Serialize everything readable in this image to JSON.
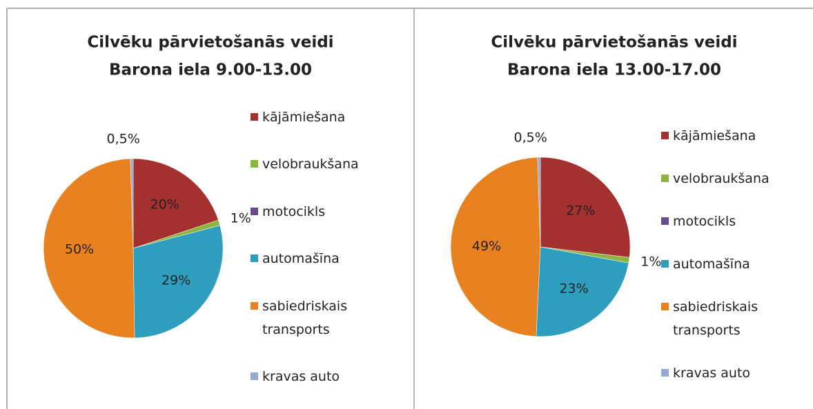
{
  "chart_data": [
    {
      "type": "pie",
      "title": "Cilvēku  pārvietošanās veidi",
      "subtitle": "Barona iela 9.00-13.00",
      "categories": [
        "kājāmiešana",
        "velobraukšana",
        "motocikls",
        "automašīna",
        "sabiedriskais transports",
        "kravas auto"
      ],
      "values": [
        20,
        1,
        0,
        29,
        50,
        0.5
      ],
      "value_labels": [
        "20%",
        "1%",
        null,
        "29%",
        "50%",
        "0,5%"
      ],
      "colors": [
        "#a3312f",
        "#8db43e",
        "#6b4a94",
        "#2f9dbd",
        "#e8811f",
        "#93aad6"
      ]
    },
    {
      "type": "pie",
      "title": "Cilvēku  pārvietošanās veidi",
      "subtitle": "Barona iela 13.00-17.00",
      "categories": [
        "kājāmiešana",
        "velobraukšana",
        "motocikls",
        "automašīna",
        "sabiedriskais transports",
        "kravas auto"
      ],
      "values": [
        27,
        1,
        0,
        23,
        49,
        0.5
      ],
      "value_labels": [
        "27%",
        "1%",
        null,
        "23%",
        "49%",
        "0,5%"
      ],
      "colors": [
        "#a3312f",
        "#8db43e",
        "#6b4a94",
        "#2f9dbd",
        "#e8811f",
        "#93aad6"
      ]
    }
  ]
}
